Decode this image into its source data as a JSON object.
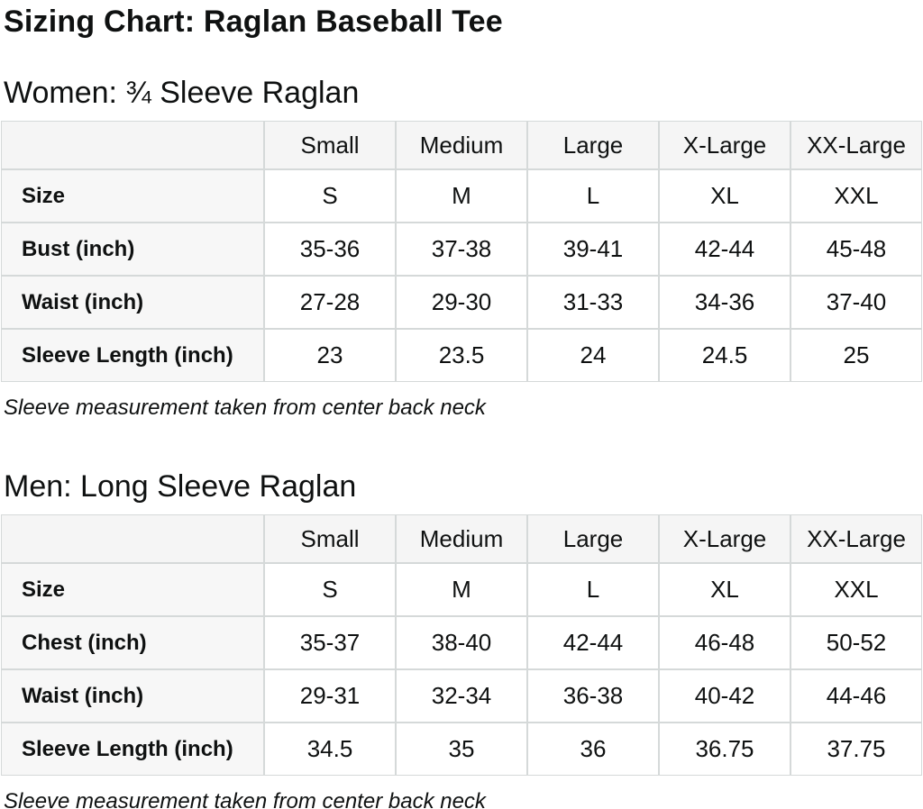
{
  "page_title": "Sizing Chart: Raglan Baseball Tee",
  "colors": {
    "text": "#0f1111",
    "border": "#d5d9d9",
    "header_row_bg": "#f5f5f5",
    "label_column_bg": "#f7f7f7",
    "page_bg": "#ffffff"
  },
  "sections": [
    {
      "heading": "Women: ¾ Sleeve Raglan",
      "note": "Sleeve measurement taken from center back neck",
      "table": {
        "column_headers": [
          "Small",
          "Medium",
          "Large",
          "X-Large",
          "XX-Large"
        ],
        "rows": [
          {
            "label": "Size",
            "values": [
              "S",
              "M",
              "L",
              "XL",
              "XXL"
            ]
          },
          {
            "label": "Bust (inch)",
            "values": [
              "35-36",
              "37-38",
              "39-41",
              "42-44",
              "45-48"
            ]
          },
          {
            "label": "Waist (inch)",
            "values": [
              "27-28",
              "29-30",
              "31-33",
              "34-36",
              "37-40"
            ]
          },
          {
            "label": "Sleeve Length (inch)",
            "values": [
              "23",
              "23.5",
              "24",
              "24.5",
              "25"
            ]
          }
        ]
      }
    },
    {
      "heading": "Men: Long Sleeve Raglan",
      "note": "Sleeve measurement taken from center back neck",
      "table": {
        "column_headers": [
          "Small",
          "Medium",
          "Large",
          "X-Large",
          "XX-Large"
        ],
        "rows": [
          {
            "label": "Size",
            "values": [
              "S",
              "M",
              "L",
              "XL",
              "XXL"
            ]
          },
          {
            "label": "Chest (inch)",
            "values": [
              "35-37",
              "38-40",
              "42-44",
              "46-48",
              "50-52"
            ]
          },
          {
            "label": "Waist (inch)",
            "values": [
              "29-31",
              "32-34",
              "36-38",
              "40-42",
              "44-46"
            ]
          },
          {
            "label": "Sleeve Length (inch)",
            "values": [
              "34.5",
              "35",
              "36",
              "36.75",
              "37.75"
            ]
          }
        ]
      }
    }
  ]
}
